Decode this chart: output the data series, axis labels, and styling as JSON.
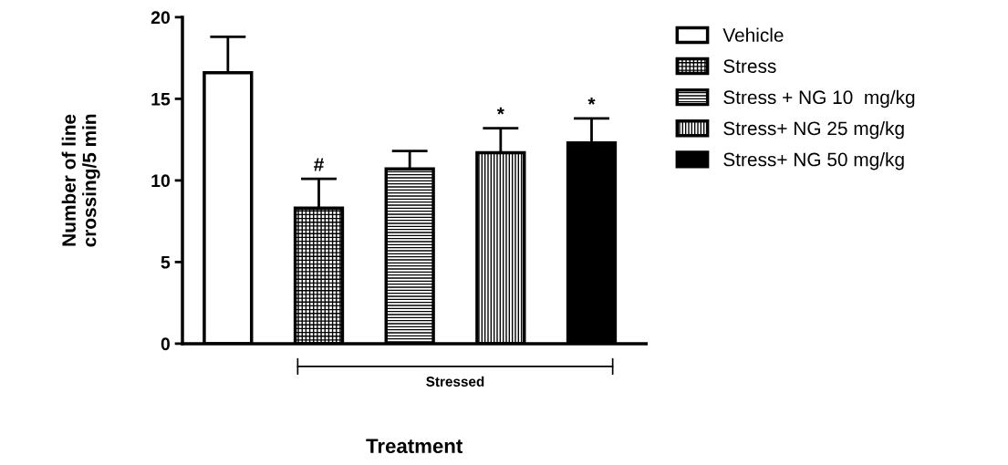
{
  "chart_data": {
    "type": "bar",
    "xlabel": "Treatment",
    "ylabel": "Number of line\ncrossing/5 min",
    "categories": [
      null,
      null,
      null,
      null,
      null
    ],
    "series": [
      {
        "name": "Vehicle",
        "color": "#ffffff",
        "values": [
          16.6,
          null,
          null,
          null,
          null
        ],
        "errors": [
          2.2,
          null,
          null,
          null,
          null
        ]
      },
      {
        "name": "Stress",
        "color": "#000000",
        "values": [
          null,
          8.3,
          null,
          null,
          null
        ],
        "errors": [
          null,
          1.8,
          null,
          null,
          null
        ]
      },
      {
        "name": "Stress + NG 10  mg/kg",
        "color": "#000000",
        "values": [
          null,
          null,
          10.7,
          null,
          null
        ],
        "errors": [
          null,
          null,
          1.1,
          null,
          null
        ]
      },
      {
        "name": "Stress+ NG 25 mg/kg",
        "color": "#000000",
        "values": [
          null,
          null,
          null,
          11.7,
          null
        ],
        "errors": [
          null,
          null,
          null,
          1.5,
          null
        ]
      },
      {
        "name": "Stress+ NG 50 mg/kg",
        "color": "#000000",
        "values": [
          null,
          null,
          null,
          null,
          12.3
        ],
        "errors": [
          null,
          null,
          null,
          null,
          1.5
        ]
      }
    ],
    "annotations": [
      "#",
      "*",
      "*",
      "Stressed"
    ],
    "ylim": [
      0,
      20
    ],
    "yticks": [
      0,
      5,
      10,
      15,
      20
    ],
    "grid": false,
    "legend": "right"
  }
}
